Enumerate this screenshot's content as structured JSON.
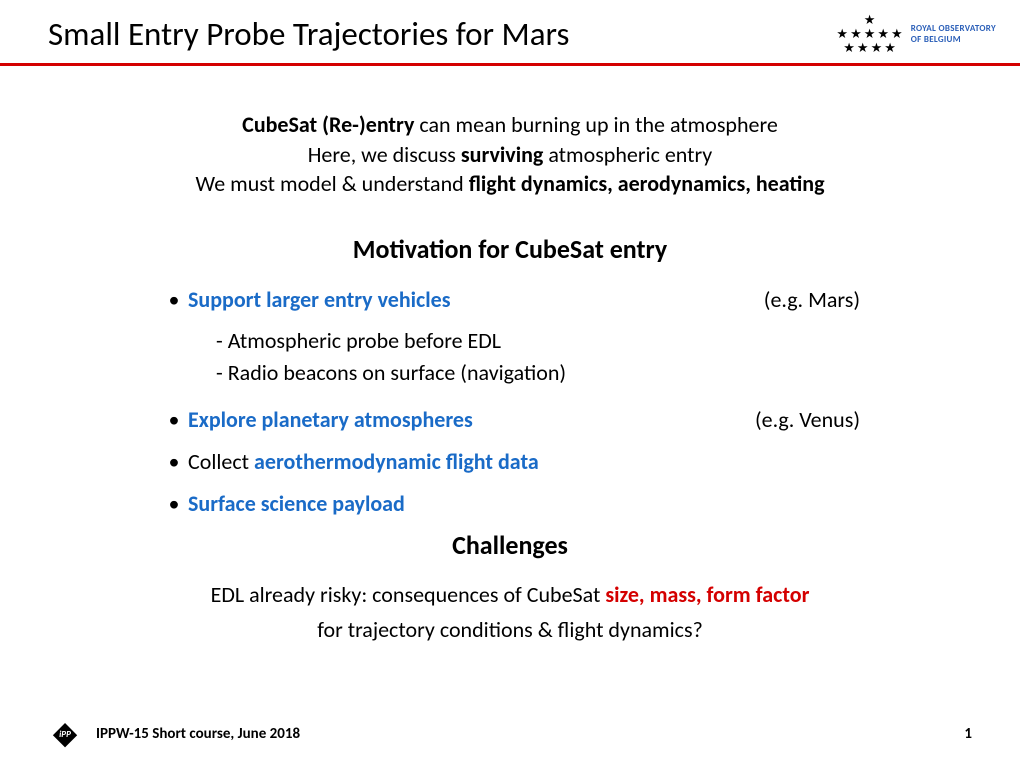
{
  "header": {
    "title": "Small Entry Probe Trajectories for Mars",
    "logo_line1": "ROYAL OBSERVATORY",
    "logo_line2": "OF BELGIUM"
  },
  "intro": {
    "seg1_bold": "CubeSat (Re-)entry",
    "seg1_rest": " can mean burning up in the atmosphere",
    "seg2_pre": "Here, we discuss ",
    "seg2_bold": "surviving",
    "seg2_rest": " atmospheric entry",
    "seg3_pre": "We must model & understand ",
    "seg3_bold": "flight dynamics, aerodynamics, heating"
  },
  "motivation": {
    "title": "Motivation for CubeSat entry",
    "bullets": [
      {
        "text": "Support larger entry vehicles",
        "paren": "(e.g. Mars)",
        "blue": true
      },
      {
        "text": "Explore planetary atmospheres",
        "paren": "(e.g. Venus)",
        "blue": true
      }
    ],
    "sub1": "- Atmospheric probe before EDL",
    "sub2": "- Radio beacons on surface (navigation)",
    "bullet3_pre": "Collect ",
    "bullet3_blue": "aerothermodynamic flight data",
    "bullet4": "Surface science payload"
  },
  "challenges": {
    "title": "Challenges",
    "line1_pre": "EDL already risky: consequences of CubeSat ",
    "line1_red": "size, mass, form factor",
    "line2": "for trajectory conditions & flight dynamics?"
  },
  "footer": {
    "ipp": "iPP",
    "text": "IPPW-15 Short course, June 2018",
    "page": "1"
  },
  "colors": {
    "red": "#d40000",
    "blue": "#1a6bc7",
    "logo_blue": "#2b5fb8"
  }
}
